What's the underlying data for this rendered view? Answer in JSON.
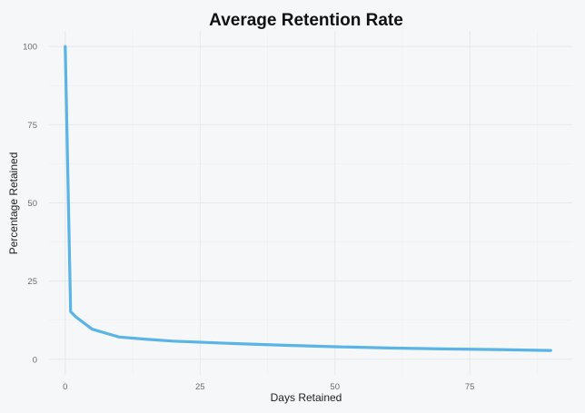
{
  "chart_data": {
    "type": "line",
    "title": "Average Retention Rate",
    "xlabel": "Days Retained",
    "ylabel": "Percentage Retained",
    "xlim": [
      -3,
      94
    ],
    "ylim": [
      -5,
      105
    ],
    "x_ticks": [
      0,
      25,
      50,
      75
    ],
    "y_ticks": [
      0,
      25,
      50,
      75,
      100
    ],
    "grid": true,
    "series": [
      {
        "color": "#5ab4e5",
        "x": [
          0,
          1,
          2,
          5,
          10,
          15,
          20,
          30,
          40,
          50,
          60,
          70,
          80,
          90
        ],
        "y": [
          100,
          15.2,
          13.5,
          9.6,
          7.1,
          6.4,
          5.8,
          5.1,
          4.5,
          4.0,
          3.6,
          3.3,
          3.1,
          2.8
        ]
      }
    ]
  }
}
